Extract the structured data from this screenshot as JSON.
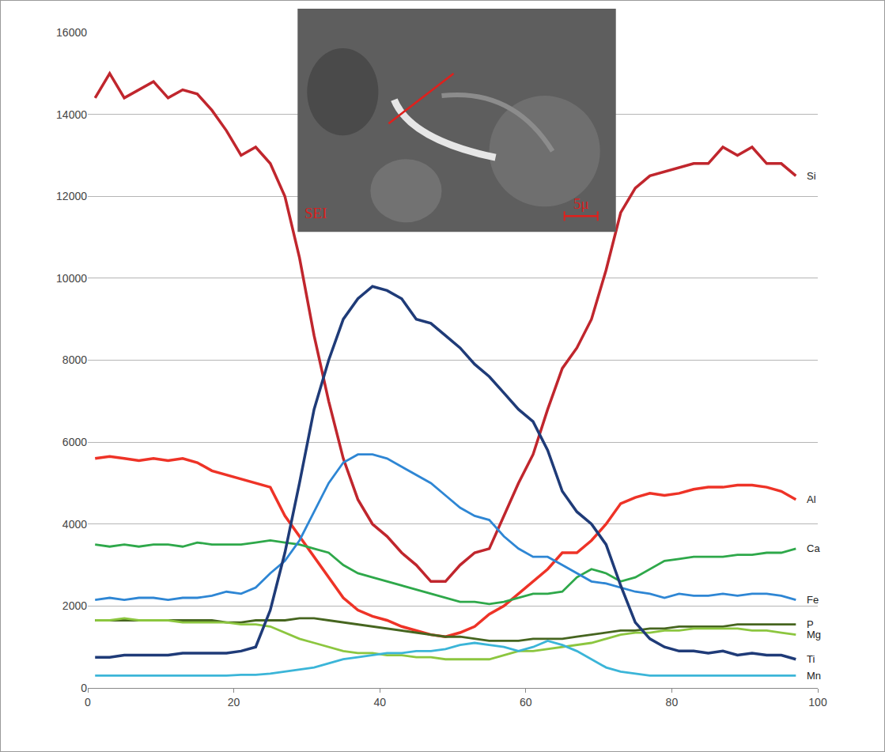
{
  "chart_data": {
    "type": "line",
    "x": [
      1,
      3,
      5,
      7,
      9,
      11,
      13,
      15,
      17,
      19,
      21,
      23,
      25,
      27,
      29,
      31,
      33,
      35,
      37,
      39,
      41,
      43,
      45,
      47,
      49,
      51,
      53,
      55,
      57,
      59,
      61,
      63,
      65,
      67,
      69,
      71,
      73,
      75,
      77,
      79,
      81,
      83,
      85,
      87,
      89,
      91,
      93,
      95,
      97
    ],
    "series": [
      {
        "name": "Si",
        "color": "#c0262d",
        "values": [
          14400,
          15000,
          14400,
          14600,
          14800,
          14400,
          14600,
          14500,
          14100,
          13600,
          13000,
          13200,
          12800,
          12000,
          10500,
          8600,
          7000,
          5600,
          4600,
          4000,
          3700,
          3300,
          3000,
          2600,
          2600,
          3000,
          3300,
          3400,
          4200,
          5000,
          5700,
          6800,
          7800,
          8300,
          9000,
          10200,
          11600,
          12200,
          12500,
          12600,
          12700,
          12800,
          12800,
          13200,
          13000,
          13200,
          12800,
          12800,
          12500
        ]
      },
      {
        "name": "Al",
        "color": "#ee3327",
        "values": [
          5600,
          5650,
          5600,
          5550,
          5600,
          5550,
          5600,
          5500,
          5300,
          5200,
          5100,
          5000,
          4900,
          4200,
          3700,
          3200,
          2700,
          2200,
          1900,
          1750,
          1650,
          1500,
          1400,
          1300,
          1250,
          1350,
          1500,
          1800,
          2000,
          2300,
          2600,
          2900,
          3300,
          3300,
          3600,
          4000,
          4500,
          4650,
          4750,
          4700,
          4750,
          4850,
          4900,
          4900,
          4950,
          4950,
          4900,
          4800,
          4600
        ]
      },
      {
        "name": "Ca",
        "color": "#2ea84a",
        "values": [
          3500,
          3450,
          3500,
          3450,
          3500,
          3500,
          3450,
          3550,
          3500,
          3500,
          3500,
          3550,
          3600,
          3550,
          3500,
          3400,
          3300,
          3000,
          2800,
          2700,
          2600,
          2500,
          2400,
          2300,
          2200,
          2100,
          2100,
          2050,
          2100,
          2200,
          2300,
          2300,
          2350,
          2700,
          2900,
          2800,
          2600,
          2700,
          2900,
          3100,
          3150,
          3200,
          3200,
          3200,
          3250,
          3250,
          3300,
          3300,
          3400
        ]
      },
      {
        "name": "Fe",
        "color": "#2e86d4",
        "values": [
          2150,
          2200,
          2150,
          2200,
          2200,
          2150,
          2200,
          2200,
          2250,
          2350,
          2300,
          2450,
          2800,
          3100,
          3600,
          4300,
          5000,
          5500,
          5700,
          5700,
          5600,
          5400,
          5200,
          5000,
          4700,
          4400,
          4200,
          4100,
          3700,
          3400,
          3200,
          3200,
          3000,
          2800,
          2600,
          2550,
          2450,
          2350,
          2300,
          2200,
          2300,
          2250,
          2250,
          2300,
          2250,
          2300,
          2300,
          2250,
          2150
        ]
      },
      {
        "name": "P",
        "color": "#46651f",
        "values": [
          1650,
          1650,
          1650,
          1650,
          1650,
          1650,
          1650,
          1650,
          1650,
          1600,
          1600,
          1650,
          1650,
          1650,
          1700,
          1700,
          1650,
          1600,
          1550,
          1500,
          1450,
          1400,
          1350,
          1300,
          1250,
          1250,
          1200,
          1150,
          1150,
          1150,
          1200,
          1200,
          1200,
          1250,
          1300,
          1350,
          1400,
          1400,
          1450,
          1450,
          1500,
          1500,
          1500,
          1500,
          1550,
          1550,
          1550,
          1550,
          1550
        ]
      },
      {
        "name": "Mg",
        "color": "#8cc63f",
        "values": [
          1650,
          1650,
          1700,
          1650,
          1650,
          1650,
          1600,
          1600,
          1600,
          1600,
          1550,
          1550,
          1500,
          1350,
          1200,
          1100,
          1000,
          900,
          850,
          850,
          800,
          800,
          750,
          750,
          700,
          700,
          700,
          700,
          800,
          900,
          900,
          950,
          1000,
          1050,
          1100,
          1200,
          1300,
          1350,
          1350,
          1400,
          1400,
          1450,
          1450,
          1450,
          1450,
          1400,
          1400,
          1350,
          1300
        ]
      },
      {
        "name": "Ti",
        "color": "#1f3b78",
        "values": [
          750,
          750,
          800,
          800,
          800,
          800,
          850,
          850,
          850,
          850,
          900,
          1000,
          1900,
          3300,
          5000,
          6800,
          8000,
          9000,
          9500,
          9800,
          9700,
          9500,
          9000,
          8900,
          8600,
          8300,
          7900,
          7600,
          7200,
          6800,
          6500,
          5800,
          4800,
          4300,
          4000,
          3500,
          2500,
          1600,
          1200,
          1000,
          900,
          900,
          850,
          900,
          800,
          850,
          800,
          800,
          700
        ]
      },
      {
        "name": "Mn",
        "color": "#3bb5d8",
        "values": [
          300,
          300,
          300,
          300,
          300,
          300,
          300,
          300,
          300,
          300,
          320,
          320,
          350,
          400,
          450,
          500,
          600,
          700,
          750,
          800,
          850,
          850,
          900,
          900,
          950,
          1050,
          1100,
          1050,
          1000,
          900,
          1000,
          1150,
          1050,
          900,
          700,
          500,
          400,
          350,
          300,
          300,
          300,
          300,
          300,
          300,
          300,
          300,
          300,
          300,
          300
        ]
      }
    ],
    "xlim": [
      0,
      100
    ],
    "xticks": [
      0,
      20,
      40,
      60,
      80,
      100
    ],
    "ylim": [
      0,
      16000
    ],
    "yticks": [
      0,
      2000,
      4000,
      6000,
      8000,
      10000,
      12000,
      14000,
      16000
    ],
    "grid": true,
    "annotations": [
      "SEI",
      "5μ"
    ]
  }
}
